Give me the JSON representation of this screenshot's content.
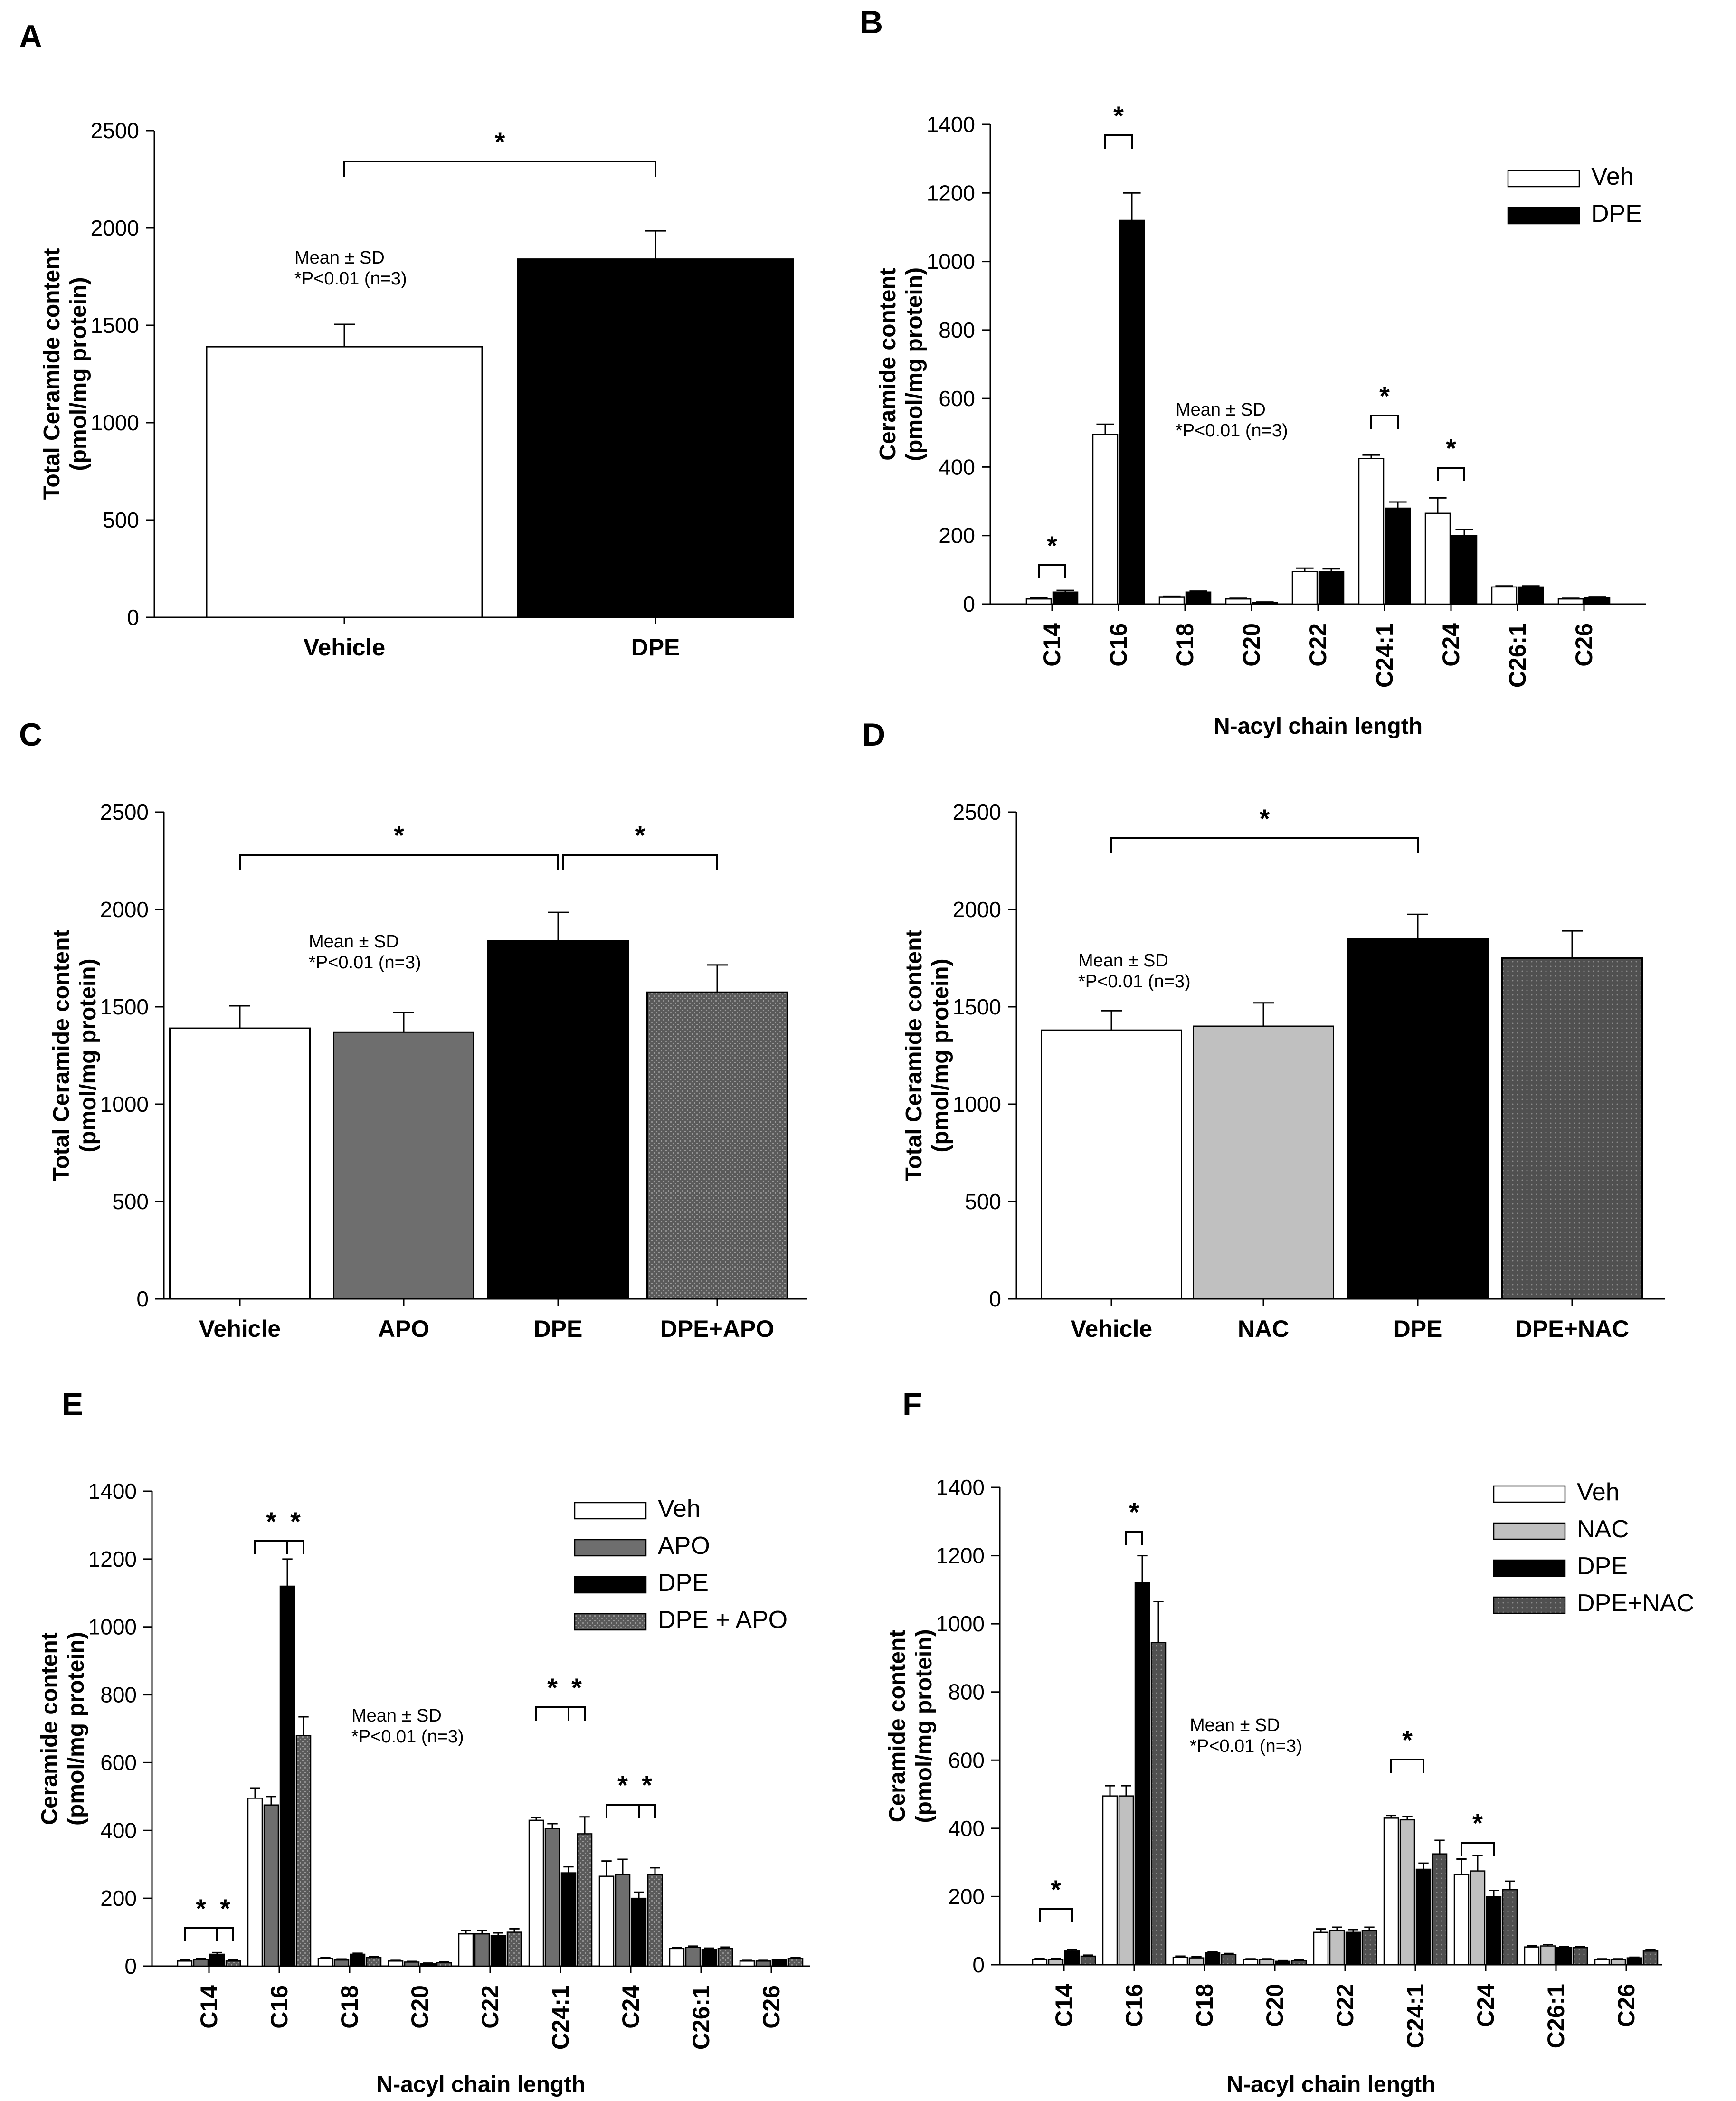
{
  "colors": {
    "veh": "#ffffff",
    "apo": "#6e6e6e",
    "nac": "#c0c0c0",
    "dpe": "#000000",
    "dpe_apo": "#5a5a5a",
    "dpe_nac": "#505050",
    "outline": "#000000"
  },
  "chart_data": [
    {
      "panel": "A",
      "type": "bar",
      "categories": [
        "Vehicle",
        "DPE"
      ],
      "values": [
        1390,
        1840
      ],
      "errors": [
        115,
        145
      ],
      "fill_keys": [
        "veh",
        "dpe"
      ],
      "ylabel_lines": [
        "Total Ceramide content",
        "(pmol/mg protein)"
      ],
      "xlabel": "",
      "ylim": [
        0,
        2500
      ],
      "yticks": [
        "0",
        "500",
        "1000",
        "1500",
        "2000",
        "2500"
      ],
      "annotation_lines": [
        "Mean ± SD",
        "*P<0.01 (n=3)"
      ],
      "significance": [
        {
          "from": 0,
          "to": 1,
          "label": "*"
        }
      ]
    },
    {
      "panel": "B",
      "type": "bar",
      "categories": [
        "C14",
        "C16",
        "C18",
        "C20",
        "C22",
        "C24:1",
        "C24",
        "C26:1",
        "C26"
      ],
      "series": [
        {
          "name": "Veh",
          "fill_key": "veh",
          "values": [
            15,
            495,
            20,
            15,
            95,
            425,
            265,
            50,
            15
          ],
          "errors": [
            3,
            30,
            3,
            2,
            10,
            10,
            45,
            3,
            2
          ]
        },
        {
          "name": "DPE",
          "fill_key": "dpe",
          "values": [
            35,
            1120,
            35,
            5,
            95,
            280,
            200,
            50,
            18
          ],
          "errors": [
            5,
            80,
            3,
            1,
            8,
            18,
            18,
            3,
            2
          ]
        }
      ],
      "ylabel_lines": [
        "Ceramide content",
        "(pmol/mg protein)"
      ],
      "xlabel": "N-acyl chain length",
      "ylim": [
        0,
        1400
      ],
      "yticks": [
        "0",
        "200",
        "400",
        "600",
        "800",
        "1000",
        "1200",
        "1400"
      ],
      "legend": "top-right",
      "annotation_lines": [
        "Mean ± SD",
        "*P<0.01 (n=3)"
      ],
      "significance": [
        {
          "cat": 0,
          "from": 0,
          "to": 1,
          "label": "*"
        },
        {
          "cat": 1,
          "from": 0,
          "to": 1,
          "label": "*"
        },
        {
          "cat": 5,
          "from": 0,
          "to": 1,
          "label": "*"
        },
        {
          "cat": 6,
          "from": 0,
          "to": 1,
          "label": "*"
        }
      ]
    },
    {
      "panel": "C",
      "type": "bar",
      "categories": [
        "Vehicle",
        "APO",
        "DPE",
        "DPE+APO"
      ],
      "values": [
        1390,
        1370,
        1840,
        1575
      ],
      "errors": [
        115,
        100,
        145,
        140
      ],
      "fill_keys": [
        "veh",
        "apo",
        "dpe",
        "dpe_apo"
      ],
      "ylabel_lines": [
        "Total Ceramide content",
        "(pmol/mg protein)"
      ],
      "xlabel": "",
      "ylim": [
        0,
        2500
      ],
      "yticks": [
        "0",
        "500",
        "1000",
        "1500",
        "2000",
        "2500"
      ],
      "annotation_lines": [
        "Mean ± SD",
        "*P<0.01 (n=3)"
      ],
      "significance": [
        {
          "from": 0,
          "to": 2,
          "label": "*"
        },
        {
          "from": 2,
          "to": 3,
          "label": "*"
        }
      ]
    },
    {
      "panel": "D",
      "type": "bar",
      "categories": [
        "Vehicle",
        "NAC",
        "DPE",
        "DPE+NAC"
      ],
      "values": [
        1380,
        1400,
        1850,
        1750
      ],
      "errors": [
        100,
        120,
        125,
        140
      ],
      "fill_keys": [
        "veh",
        "nac",
        "dpe",
        "dpe_nac"
      ],
      "ylabel_lines": [
        "Total Ceramide content",
        "(pmol/mg protein)"
      ],
      "xlabel": "",
      "ylim": [
        0,
        2500
      ],
      "yticks": [
        "0",
        "500",
        "1000",
        "1500",
        "2000",
        "2500"
      ],
      "annotation_lines": [
        "Mean ± SD",
        "*P<0.01 (n=3)"
      ],
      "significance": [
        {
          "from": 0,
          "to": 2,
          "label": "*"
        }
      ]
    },
    {
      "panel": "E",
      "type": "bar",
      "categories": [
        "C14",
        "C16",
        "C18",
        "C20",
        "C22",
        "C24:1",
        "C24",
        "C26:1",
        "C26"
      ],
      "series": [
        {
          "name": "Veh",
          "fill_key": "veh",
          "values": [
            15,
            495,
            22,
            15,
            95,
            430,
            265,
            52,
            15
          ],
          "errors": [
            3,
            30,
            3,
            2,
            10,
            8,
            45,
            3,
            2
          ]
        },
        {
          "name": "APO",
          "fill_key": "apo",
          "values": [
            20,
            475,
            18,
            12,
            95,
            405,
            270,
            55,
            15
          ],
          "errors": [
            3,
            25,
            3,
            2,
            10,
            15,
            45,
            4,
            2
          ]
        },
        {
          "name": "DPE",
          "fill_key": "dpe",
          "values": [
            35,
            1120,
            35,
            8,
            90,
            275,
            200,
            50,
            18
          ],
          "errors": [
            5,
            80,
            3,
            1,
            8,
            18,
            18,
            3,
            2
          ]
        },
        {
          "name": "DPE + APO",
          "fill_key": "dpe_apo",
          "values": [
            15,
            680,
            25,
            10,
            100,
            390,
            270,
            52,
            22
          ],
          "errors": [
            3,
            55,
            3,
            2,
            10,
            50,
            20,
            4,
            3
          ]
        }
      ],
      "ylabel_lines": [
        "Ceramide content",
        "(pmol/mg protein)"
      ],
      "xlabel": "N-acyl chain length",
      "ylim": [
        0,
        1400
      ],
      "yticks": [
        "0",
        "200",
        "400",
        "600",
        "800",
        "1000",
        "1200",
        "1400"
      ],
      "legend": "top-right",
      "annotation_lines": [
        "Mean ± SD",
        "*P<0.01 (n=3)"
      ],
      "significance": [
        {
          "cat": 0,
          "from": 0,
          "to": 2,
          "label": "*"
        },
        {
          "cat": 0,
          "from": 2,
          "to": 3,
          "label": "*"
        },
        {
          "cat": 1,
          "from": 0,
          "to": 2,
          "label": "*"
        },
        {
          "cat": 1,
          "from": 2,
          "to": 3,
          "label": "*"
        },
        {
          "cat": 5,
          "from": 0,
          "to": 2,
          "label": "*"
        },
        {
          "cat": 5,
          "from": 2,
          "to": 3,
          "label": "*"
        },
        {
          "cat": 6,
          "from": 0,
          "to": 2,
          "label": "*"
        },
        {
          "cat": 6,
          "from": 2,
          "to": 3,
          "label": "*"
        }
      ]
    },
    {
      "panel": "F",
      "type": "bar",
      "categories": [
        "C14",
        "C16",
        "C18",
        "C20",
        "C22",
        "C24:1",
        "C24",
        "C26:1",
        "C26"
      ],
      "series": [
        {
          "name": "Veh",
          "fill_key": "veh",
          "values": [
            15,
            495,
            22,
            15,
            95,
            430,
            265,
            52,
            15
          ],
          "errors": [
            3,
            30,
            3,
            2,
            10,
            8,
            45,
            3,
            2
          ]
        },
        {
          "name": "NAC",
          "fill_key": "nac",
          "values": [
            15,
            495,
            20,
            15,
            100,
            425,
            275,
            55,
            15
          ],
          "errors": [
            3,
            30,
            3,
            2,
            10,
            10,
            45,
            4,
            2
          ]
        },
        {
          "name": "DPE",
          "fill_key": "dpe",
          "values": [
            40,
            1120,
            35,
            10,
            95,
            280,
            200,
            50,
            20
          ],
          "errors": [
            5,
            80,
            3,
            2,
            8,
            18,
            18,
            3,
            2
          ]
        },
        {
          "name": "DPE+NAC",
          "fill_key": "dpe_nac",
          "values": [
            25,
            945,
            30,
            12,
            100,
            325,
            220,
            50,
            40
          ],
          "errors": [
            3,
            120,
            3,
            2,
            10,
            40,
            25,
            3,
            5
          ]
        }
      ],
      "ylabel_lines": [
        "Ceramide content",
        "(pmol/mg protein)"
      ],
      "xlabel": "N-acyl chain length",
      "ylim": [
        0,
        1400
      ],
      "yticks": [
        "0",
        "200",
        "400",
        "600",
        "800",
        "1000",
        "1200",
        "1400"
      ],
      "legend": "top-right",
      "annotation_lines": [
        "Mean ± SD",
        "*P<0.01 (n=3)"
      ],
      "significance": [
        {
          "cat": 0,
          "from": 0,
          "to": 2,
          "label": "*"
        },
        {
          "cat": 1,
          "from": 1,
          "to": 2,
          "label": "*"
        },
        {
          "cat": 5,
          "from": 0,
          "to": 2,
          "label": "*"
        },
        {
          "cat": 6,
          "from": 0,
          "to": 2,
          "label": "*"
        }
      ]
    }
  ]
}
